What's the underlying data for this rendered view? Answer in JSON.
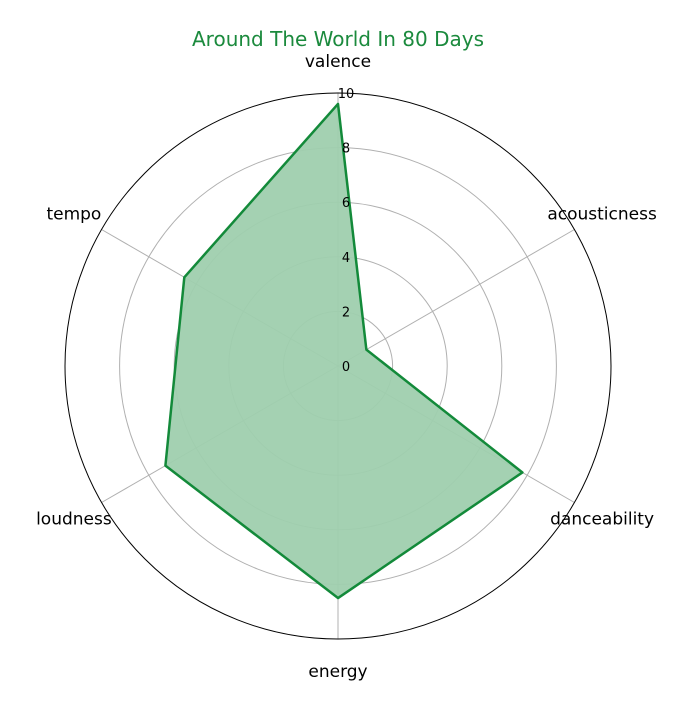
{
  "chart_data": {
    "type": "radar",
    "title": "Around The World In 80 Days",
    "axes": [
      "valence",
      "acousticness",
      "danceability",
      "energy",
      "loudness",
      "tempo"
    ],
    "values": [
      9.6,
      1.2,
      7.8,
      8.5,
      7.3,
      6.5
    ],
    "rlim": [
      0,
      10
    ],
    "rticks": [
      "0",
      "2",
      "4",
      "6",
      "8",
      "10"
    ],
    "grid": true,
    "colors": {
      "title": "#1b8a3d",
      "line": "#138a3a",
      "fill": "#9fcfae",
      "grid": "#b0b0b0",
      "frame": "#000000"
    }
  }
}
